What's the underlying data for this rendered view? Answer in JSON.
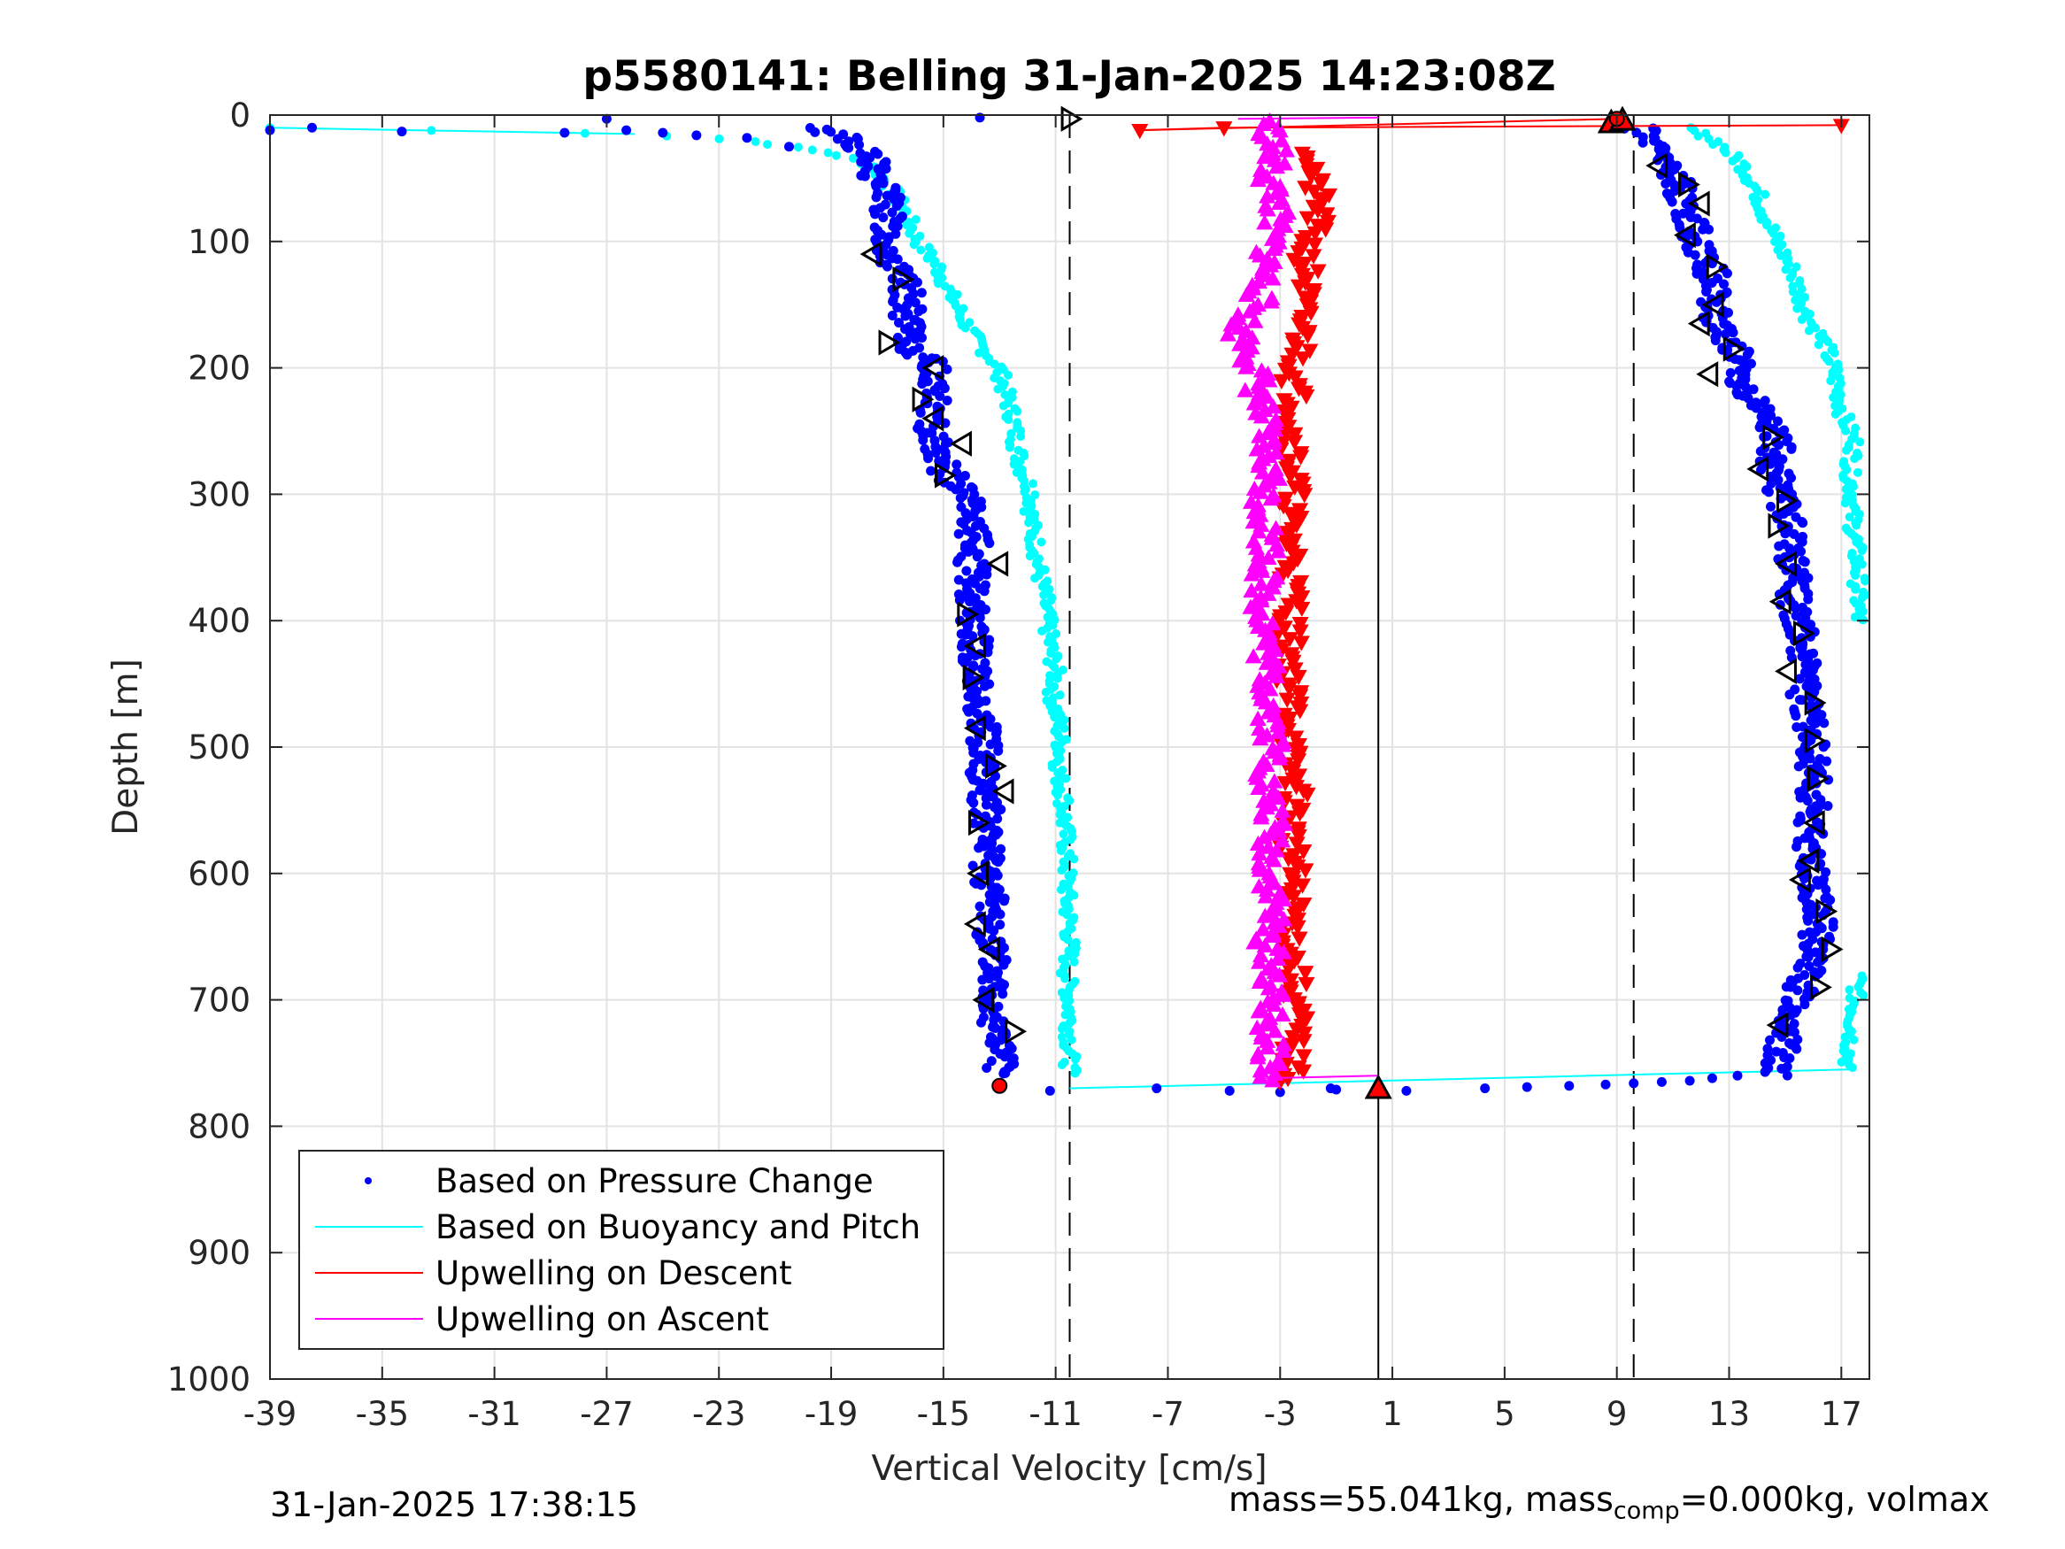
{
  "chart_data": {
    "type": "scatter",
    "title": "p5580141: Belling 31-Jan-2025 14:23:08Z",
    "xlabel": "Vertical Velocity [cm/s]",
    "ylabel": "Depth [m]",
    "xlim": [
      -39,
      18
    ],
    "ylim": [
      0,
      1000
    ],
    "y_reversed": true,
    "grid": true,
    "x_ticks": [
      "-39",
      "-35",
      "-31",
      "-27",
      "-23",
      "-19",
      "-15",
      "-11",
      "-7",
      "-3",
      "1",
      "5",
      "9",
      "13",
      "17"
    ],
    "y_ticks": [
      "0",
      "100",
      "200",
      "300",
      "400",
      "500",
      "600",
      "700",
      "800",
      "900",
      "1000"
    ],
    "legend_position": "bottom-left",
    "legend": [
      {
        "label": "Based on Pressure Change",
        "color": "#0000ff",
        "marker": "dot"
      },
      {
        "label": "Based on Buoyancy and Pitch",
        "color": "#00ffff",
        "marker": "line"
      },
      {
        "label": "Upwelling on Descent",
        "color": "#ff0000",
        "marker": "line"
      },
      {
        "label": "Upwelling on Ascent",
        "color": "#ff00ff",
        "marker": "line"
      }
    ],
    "reference_lines": [
      {
        "x": -10.5,
        "style": "dashed"
      },
      {
        "x": 0.5,
        "style": "solid"
      },
      {
        "x": 9.6,
        "style": "dashed"
      }
    ],
    "series": [
      {
        "name": "Based on Pressure Change",
        "color": "#0000ff",
        "descent": {
          "depth": [
            10,
            15,
            25,
            40,
            50,
            60,
            80,
            100,
            120,
            140,
            160,
            180,
            200,
            220,
            240,
            260,
            280,
            300,
            320,
            340,
            360,
            380,
            400,
            420,
            440,
            460,
            480,
            500,
            520,
            540,
            560,
            580,
            600,
            620,
            640,
            660,
            680,
            700,
            720,
            740,
            760
          ],
          "velocity": [
            -20,
            -18.5,
            -18,
            -17.5,
            -17.5,
            -17,
            -17,
            -17,
            -16.8,
            -16.3,
            -16.3,
            -16.3,
            -15.3,
            -15.3,
            -15.5,
            -15.2,
            -15,
            -14.2,
            -14,
            -13.9,
            -14,
            -13.9,
            -14,
            -13.8,
            -13.9,
            -13.8,
            -13.6,
            -13.5,
            -13.6,
            -13.5,
            -13.5,
            -13.4,
            -13.4,
            -13.3,
            -13.3,
            -13.3,
            -13.2,
            -13.2,
            -13.1,
            -13,
            -13
          ]
        },
        "ascent": {
          "depth": [
            760,
            740,
            720,
            700,
            680,
            660,
            640,
            620,
            600,
            580,
            560,
            540,
            520,
            500,
            480,
            460,
            440,
            420,
            400,
            380,
            360,
            340,
            320,
            300,
            280,
            260,
            240,
            220,
            200,
            180,
            160,
            140,
            120,
            100,
            80,
            60,
            40,
            20,
            10
          ],
          "velocity": [
            14.7,
            14.9,
            15.1,
            15.4,
            15.7,
            16,
            16.2,
            16.1,
            15.9,
            15.9,
            15.9,
            16,
            16,
            16,
            15.9,
            15.7,
            15.6,
            15.7,
            15.4,
            15.3,
            15.3,
            15.2,
            15.1,
            14.9,
            14.6,
            14.7,
            14.4,
            13.6,
            13.4,
            13.1,
            12.4,
            12.6,
            12.3,
            11.9,
            11.6,
            11.3,
            10.8,
            10.2,
            9.8
          ]
        },
        "surface_points": {
          "depth": [
            12,
            10,
            13,
            14,
            3,
            2,
            12,
            14,
            16,
            18,
            25
          ],
          "velocity": [
            -39,
            -37.5,
            -34.3,
            -28.5,
            -27,
            -13.7,
            -26.3,
            -25,
            -23.8,
            -22,
            -20.5
          ]
        },
        "bottom_points": {
          "depth": [
            770,
            772,
            773,
            771,
            772,
            770,
            769,
            768,
            767,
            766,
            765,
            764,
            762,
            760,
            772,
            770
          ],
          "velocity": [
            -7.4,
            -4.8,
            -3,
            -1,
            1.5,
            4.3,
            5.8,
            7.3,
            8.6,
            9.6,
            10.6,
            11.6,
            12.4,
            13.3,
            -11.2,
            -1.2
          ]
        }
      },
      {
        "name": "Based on Buoyancy and Pitch",
        "color": "#00ffff",
        "descent": {
          "depth": [
            10,
            15,
            20,
            30,
            40,
            60,
            80,
            100,
            120,
            140,
            160,
            180,
            200,
            220,
            240,
            260,
            280,
            300,
            320,
            340,
            360,
            380,
            400,
            420,
            440,
            460,
            480,
            500,
            520,
            540,
            560,
            580,
            600,
            620,
            640,
            660,
            680,
            700,
            720,
            740,
            760
          ],
          "velocity": [
            -39,
            -26,
            -22,
            -19,
            -17.5,
            -16.8,
            -16.3,
            -15.9,
            -15.2,
            -14.8,
            -14.3,
            -13.8,
            -13,
            -12.8,
            -12.5,
            -12.4,
            -12.2,
            -11.8,
            -11.9,
            -11.7,
            -11.6,
            -11.4,
            -11.3,
            -11.2,
            -11,
            -11.1,
            -10.9,
            -10.8,
            -10.9,
            -10.7,
            -10.7,
            -10.6,
            -10.6,
            -10.6,
            -10.5,
            -10.5,
            -10.6,
            -10.5,
            -10.5,
            -10.5,
            -10.5
          ]
        },
        "ascent": {
          "depth": [
            755,
            740,
            720,
            700,
            680,
            400,
            380,
            360,
            340,
            320,
            300,
            280,
            260,
            240,
            220,
            200,
            180,
            160,
            140,
            120,
            100,
            80,
            60,
            40,
            20,
            10
          ],
          "velocity": [
            17.2,
            17.3,
            17.4,
            17.5,
            17.6,
            17.6,
            17.6,
            17.6,
            17.5,
            17.4,
            17.4,
            17.3,
            17.5,
            17.1,
            16.9,
            16.7,
            16.4,
            15.8,
            15.5,
            15.2,
            14.7,
            14.3,
            14,
            13.5,
            12.5,
            11.5
          ]
        },
        "bottom_line": {
          "depth": [
            770,
            755
          ],
          "velocity": [
            -10.5,
            17.4
          ]
        },
        "surface_line": {
          "depth": [
            10,
            15
          ],
          "velocity": [
            -39,
            -26
          ]
        }
      },
      {
        "name": "Upwelling on Descent",
        "color": "#ff0000",
        "depth": [
          10,
          30,
          50,
          70,
          90,
          110,
          130,
          150,
          170,
          190,
          210,
          230,
          250,
          270,
          290,
          310,
          330,
          350,
          370,
          390,
          410,
          430,
          450,
          470,
          490,
          510,
          530,
          550,
          570,
          590,
          610,
          630,
          650,
          670,
          690,
          710,
          730,
          750,
          765
        ],
        "velocity": [
          -8,
          -1.8,
          -1.9,
          -1.6,
          -1.8,
          -2.1,
          -2,
          -2.3,
          -2.2,
          -2.3,
          -2.5,
          -2.4,
          -2.6,
          -2.5,
          -2.5,
          -2.6,
          -2.7,
          -2.5,
          -2.6,
          -2.5,
          -2.7,
          -2.6,
          -2.7,
          -2.5,
          -2.6,
          -2.7,
          -2.4,
          -2.5,
          -2.6,
          -2.5,
          -2.6,
          -2.5,
          -2.6,
          -2.5,
          -2.5,
          -2.4,
          -2.5,
          -2.6,
          -2.6
        ]
      },
      {
        "name": "Upwelling on Ascent",
        "color": "#ff00ff",
        "depth": [
          765,
          750,
          730,
          710,
          690,
          670,
          650,
          630,
          610,
          590,
          570,
          550,
          530,
          510,
          490,
          470,
          450,
          430,
          410,
          390,
          370,
          350,
          330,
          310,
          290,
          270,
          250,
          230,
          210,
          190,
          170,
          150,
          130,
          110,
          90,
          70,
          50,
          30,
          5
        ],
        "velocity": [
          -3.5,
          -3.3,
          -3.4,
          -3.4,
          -3.3,
          -3.3,
          -3.5,
          -3.2,
          -3.3,
          -3.4,
          -3.3,
          -3.3,
          -3.6,
          -3.2,
          -3.3,
          -3.3,
          -3.4,
          -3.5,
          -3.5,
          -3.6,
          -3.6,
          -3.4,
          -3.5,
          -3.6,
          -3.4,
          -3.5,
          -3.6,
          -3.7,
          -3.8,
          -4,
          -4.5,
          -3.8,
          -3.6,
          -3.4,
          -3.3,
          -3.1,
          -3.4,
          -3.2,
          -3.4
        ]
      }
    ],
    "markers": {
      "descent_triangles": {
        "depth": [
          3,
          110,
          130,
          180,
          200,
          225,
          240,
          260,
          285,
          355,
          395,
          420,
          445,
          485,
          515,
          535,
          560,
          600,
          640,
          660,
          700,
          725
        ],
        "velocity": [
          -10.5,
          -17.5,
          -16.5,
          -17,
          -15.3,
          -15.8,
          -15.3,
          -14.3,
          -15,
          -13,
          -14.2,
          -13.8,
          -14,
          -13.8,
          -13.2,
          -12.8,
          -13.8,
          -13.7,
          -13.8,
          -13.3,
          -13.5,
          -12.5
        ],
        "direction": [
          "right",
          "left",
          "right",
          "right",
          "left",
          "right",
          "left",
          "left",
          "right",
          "left",
          "right",
          "left",
          "right",
          "left",
          "right",
          "left",
          "right",
          "left",
          "left",
          "left",
          "left",
          "right"
        ]
      },
      "ascent_triangles": {
        "depth": [
          40,
          55,
          70,
          95,
          120,
          150,
          165,
          185,
          205,
          255,
          280,
          305,
          325,
          355,
          385,
          410,
          440,
          465,
          495,
          525,
          560,
          590,
          605,
          630,
          660,
          690,
          720
        ],
        "velocity": [
          10.5,
          11.5,
          12,
          11.5,
          12.5,
          12.5,
          12,
          13.1,
          12.3,
          14.5,
          14.1,
          15,
          14.7,
          15.1,
          14.9,
          15.6,
          15.1,
          16,
          16,
          16.1,
          16.1,
          15.9,
          15.6,
          16.4,
          16.6,
          16.2,
          14.8
        ],
        "direction": [
          "left",
          "right",
          "left",
          "left",
          "right",
          "left",
          "left",
          "right",
          "left",
          "right",
          "left",
          "right",
          "right",
          "left",
          "left",
          "right",
          "left",
          "right",
          "right",
          "right",
          "left",
          "left",
          "left",
          "right",
          "right",
          "right",
          "left"
        ]
      },
      "red_up_triangles": {
        "depth": [
          6,
          4,
          770
        ],
        "velocity": [
          8.8,
          9.2,
          0.5
        ]
      },
      "red_dots": {
        "depth": [
          768,
          3
        ],
        "velocity": [
          -13,
          9
        ]
      },
      "red_descent_surface": {
        "depth": [
          12,
          10,
          8
        ],
        "velocity": [
          -8,
          -5,
          17
        ]
      }
    }
  },
  "footer": {
    "timestamp": "31-Jan-2025 17:38:15",
    "mass_prefix": "mass=55.041kg, mass",
    "mass_sub": "comp",
    "mass_suffix": "=0.000kg, volmax"
  }
}
